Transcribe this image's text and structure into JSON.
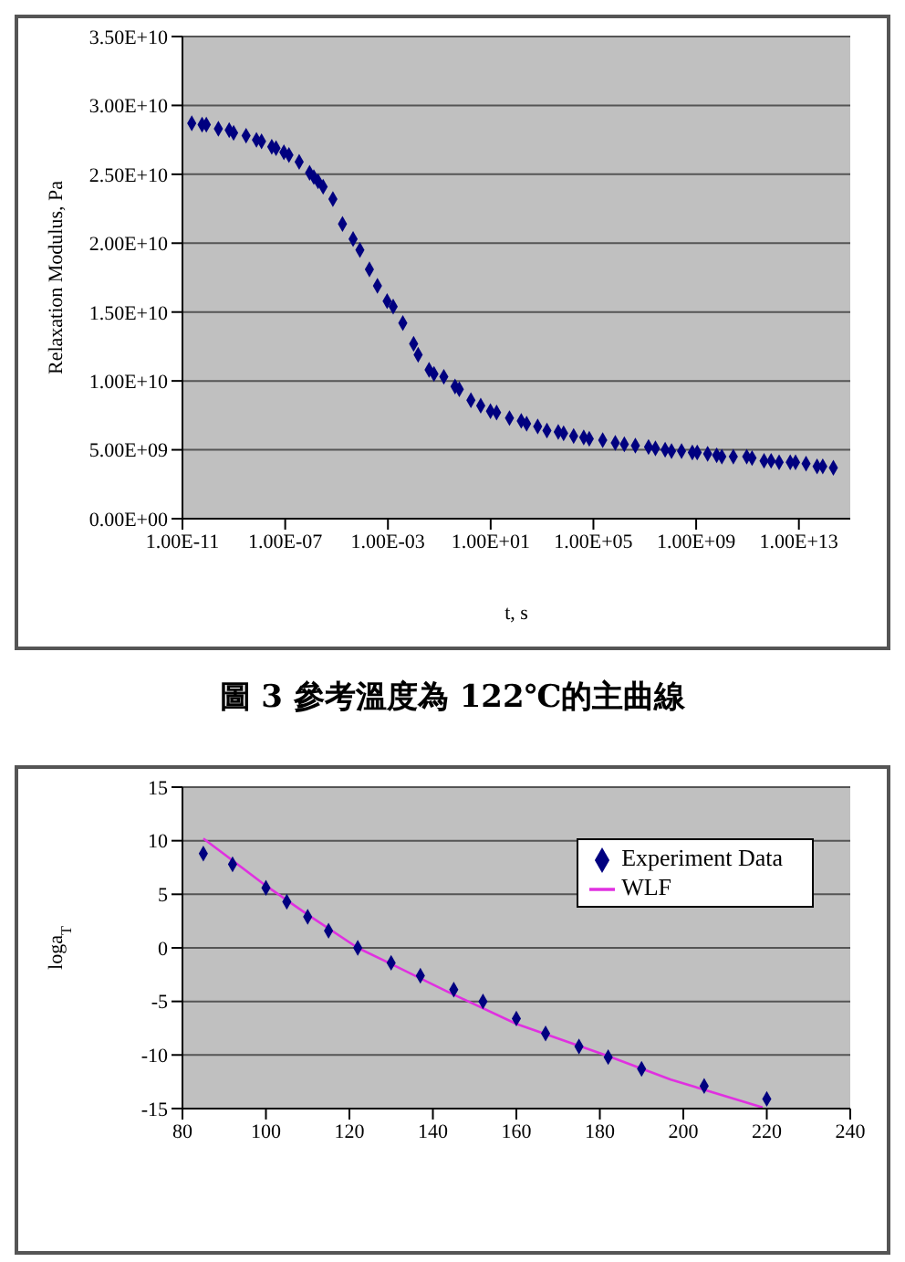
{
  "chart_data": [
    {
      "type": "scatter",
      "xlabel": "t, s",
      "ylabel": "Relaxation Modulus, Pa",
      "log": "x",
      "grid": "y",
      "marker": "diamond",
      "color": "#000080",
      "x": [
        2.3e-11,
        5.8e-11,
        8.5e-11,
        2.5e-10,
        6.6e-10,
        9.8e-10,
        3e-09,
        7.6e-09,
        1.2e-08,
        3e-08,
        4.4e-08,
        8.9e-08,
        1.4e-07,
        3.5e-07,
        8.9e-07,
        1.3e-06,
        1.9e-06,
        3e-06,
        7.2e-06,
        1.7e-05,
        4.4e-05,
        8.1e-05,
        0.00019,
        0.00039,
        0.00093,
        0.0016,
        0.0038,
        0.01,
        0.015,
        0.04,
        0.062,
        0.15,
        0.41,
        0.6,
        1.7,
        4.1,
        9.8,
        17,
        54,
        155,
        251,
        676,
        1550,
        4270,
        6920,
        17000.0,
        42000.0,
        69000.0,
        230000.0,
        710000.0,
        1600000.0,
        4300000.0,
        14000000.0,
        26000000.0,
        62000000.0,
        110000000.0,
        270000000.0,
        710000000.0,
        1100000000.0,
        2800000000.0,
        6300000000.0,
        10000000000.0,
        28000000000.0,
        93000000000.0,
        150000000000.0,
        440000000000.0,
        830000000000.0,
        1700000000000.0,
        4600000000000.0,
        7400000000000.0,
        19000000000000.0,
        51000000000000.0,
        85000000000000.0,
        220000000000000.0
      ],
      "values": [
        28700000000.0,
        28600000000.0,
        28600000000.0,
        28300000000.0,
        28200000000.0,
        28000000000.0,
        27800000000.0,
        27500000000.0,
        27400000000.0,
        27000000000.0,
        26900000000.0,
        26600000000.0,
        26400000000.0,
        25900000000.0,
        25100000000.0,
        24800000000.0,
        24500000000.0,
        24100000000.0,
        23200000000.0,
        21400000000.0,
        20300000000.0,
        19500000000.0,
        18100000000.0,
        16900000000.0,
        15800000000.0,
        15400000000.0,
        14200000000.0,
        12700000000.0,
        11900000000.0,
        10800000000.0,
        10500000000.0,
        10300000000.0,
        9600000000.0,
        9400000000.0,
        8600000000.0,
        8200000000.0,
        7800000000.0,
        7700000000.0,
        7300000000.0,
        7100000000.0,
        6900000000.0,
        6700000000.0,
        6400000000.0,
        6300000000.0,
        6200000000.0,
        6000000000.0,
        5900000000.0,
        5800000000.0,
        5700000000.0,
        5500000000.0,
        5400000000.0,
        5300000000.0,
        5200000000.0,
        5100000000.0,
        5000000000.0,
        4900000000.0,
        4900000000.0,
        4800000000.0,
        4800000000.0,
        4700000000.0,
        4600000000.0,
        4500000000.0,
        4500000000.0,
        4500000000.0,
        4400000000.0,
        4200000000.0,
        4200000000.0,
        4100000000.0,
        4100000000.0,
        4100000000.0,
        4000000000.0,
        3800000000.0,
        3800000000.0,
        3700000000.0
      ],
      "xlim": [
        1e-11,
        1000000000000000.0
      ],
      "xticks": [
        {
          "value": 1e-11,
          "label": "1.00E-11"
        },
        {
          "value": 1e-07,
          "label": "1.00E-07"
        },
        {
          "value": 0.001,
          "label": "1.00E-03"
        },
        {
          "value": 10,
          "label": "1.00E+01"
        },
        {
          "value": 100000.0,
          "label": "1.00E+05"
        },
        {
          "value": 1000000000.0,
          "label": "1.00E+09"
        },
        {
          "value": 10000000000000.0,
          "label": "1.00E+13"
        }
      ],
      "ylim": [
        0,
        35000000000.0
      ],
      "yticks": [
        {
          "value": 0,
          "label": "0.00E+00"
        },
        {
          "value": 5000000000.0,
          "label": "5.00E+09"
        },
        {
          "value": 10000000000.0,
          "label": "1.00E+10"
        },
        {
          "value": 15000000000.0,
          "label": "1.50E+10"
        },
        {
          "value": 20000000000.0,
          "label": "2.00E+10"
        },
        {
          "value": 25000000000.0,
          "label": "2.50E+10"
        },
        {
          "value": 30000000000.0,
          "label": "3.00E+10"
        },
        {
          "value": 35000000000.0,
          "label": "3.50E+10"
        }
      ],
      "annotations": [
        "圖 3 參考溫度為 122℃的主曲線"
      ]
    },
    {
      "type": "scatter",
      "ylabel": "loga$_{T}$",
      "grid": "y",
      "marker": "diamond",
      "legend": "top right",
      "xlim": [
        80,
        240
      ],
      "xticks": [
        80,
        100,
        120,
        140,
        160,
        180,
        200,
        220,
        240
      ],
      "ylim": [
        -15,
        15
      ],
      "yticks": [
        -15,
        -10,
        -5,
        0,
        5,
        10,
        15
      ],
      "series": [
        {
          "name": "Experiment Data",
          "type": "scatter",
          "color": "#000080",
          "x": [
            85,
            92,
            100,
            105,
            110,
            115,
            122,
            130,
            137,
            145,
            152,
            160,
            167,
            175,
            182,
            190,
            205,
            220
          ],
          "values": [
            8.8,
            7.8,
            5.6,
            4.3,
            2.9,
            1.6,
            0,
            -1.4,
            -2.6,
            -3.9,
            -5.0,
            -6.6,
            -8.0,
            -9.2,
            -10.2,
            -11.3,
            -12.9,
            -14.1
          ]
        },
        {
          "name": "WLF",
          "type": "line",
          "marker": "none",
          "color": "#e030e0",
          "x": [
            85,
            100,
            110,
            122,
            130,
            143,
            160,
            182,
            197,
            219
          ],
          "values": [
            10.2,
            5.8,
            3.1,
            0,
            -1.5,
            -4.0,
            -7.1,
            -10.1,
            -12.3,
            -14.9
          ]
        }
      ]
    }
  ]
}
